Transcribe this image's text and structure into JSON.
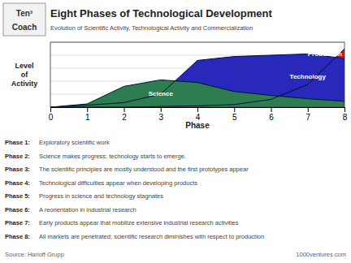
{
  "chart_data": {
    "type": "area",
    "title": "Eight Phases of Technological Development",
    "subtitle": "Evolution of Scientific Activity, Technological Activity and Commercialization",
    "x": [
      0,
      1,
      2,
      3,
      4,
      5,
      6,
      7,
      8
    ],
    "series": [
      {
        "name": "Science",
        "color": "#2E7D52",
        "values": [
          0.0,
          0.05,
          0.32,
          0.42,
          0.38,
          0.24,
          0.18,
          0.13,
          0.09
        ]
      },
      {
        "name": "Technology",
        "color": "#2828BB",
        "values": [
          0.0,
          0.03,
          0.07,
          0.2,
          0.72,
          0.78,
          0.8,
          0.82,
          0.75
        ]
      },
      {
        "name": "Production",
        "color": "#CC1818",
        "values": [
          0.0,
          0.0,
          0.0,
          0.01,
          0.02,
          0.04,
          0.12,
          0.35,
          0.9
        ]
      }
    ],
    "xlabel": "Phase",
    "ylabel": "Level\nof\nActivity",
    "xlim": [
      0,
      8
    ],
    "xticks": [
      0,
      1,
      2,
      3,
      4,
      5,
      6,
      7,
      8
    ],
    "ylim": [
      0,
      1.0
    ],
    "yticks": [
      0,
      0.2,
      0.4,
      0.6,
      0.8,
      1.0
    ],
    "grid": true,
    "tick_labels": "x",
    "annotations": {
      "logo": [
        "Ten³",
        "Coach"
      ],
      "phase_descriptions": [
        [
          "Phase 1:",
          "Exploratory scientific work"
        ],
        [
          "Phase 2:",
          "Science makes progress; technology starts to emerge."
        ],
        [
          "Phase 3:",
          "The scientific principles are mostly understood and the first prototypes appear"
        ],
        [
          "Phase 4:",
          "Technological difficulties appear when developing products"
        ],
        [
          "Phase 5:",
          "Progress in science and technology stagnates"
        ],
        [
          "Phase 6:",
          "A reorientation in industrial research"
        ],
        [
          "Phase 7:",
          "Early products appear that mobilize extensive industrial research activities"
        ],
        [
          "Phase 8:",
          "All markets are penetrated; scientific research diminishes with respect to production"
        ]
      ],
      "source": "Source: Harioff Grupp",
      "website": "1000ventures.com"
    }
  }
}
